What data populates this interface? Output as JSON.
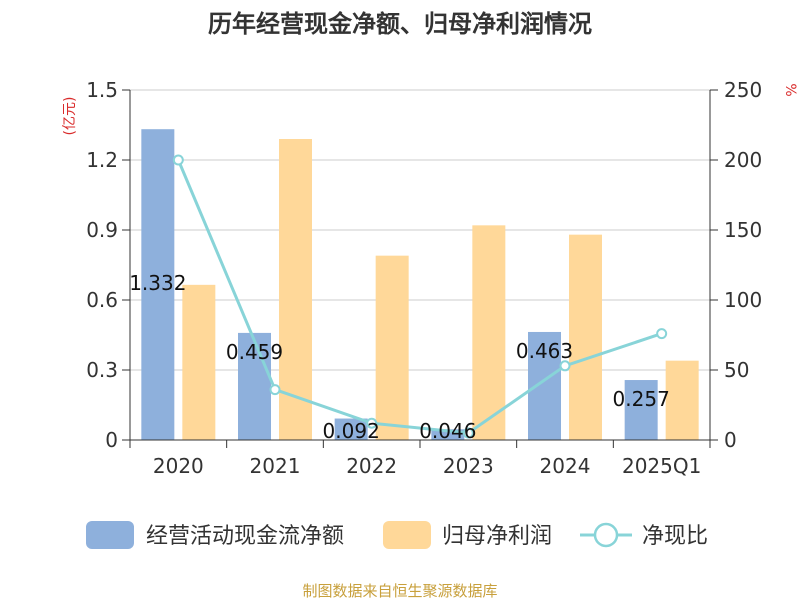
{
  "chart_data": {
    "type": "bar",
    "title": "历年经营现金净额、归母净利润情况",
    "categories": [
      "2020",
      "2021",
      "2022",
      "2023",
      "2024",
      "2025Q1"
    ],
    "y_left": {
      "unit": "(亿元)",
      "ticks": [
        "1.5",
        "1.2",
        "0.9",
        "0.6",
        "0.3",
        "0"
      ],
      "range": [
        0,
        1.5
      ]
    },
    "y_right": {
      "unit": "%",
      "ticks": [
        "250",
        "200",
        "150",
        "100",
        "50",
        "0"
      ],
      "range": [
        0,
        250
      ]
    },
    "series": [
      {
        "name": "经营活动现金流净额",
        "kind": "bar",
        "axis": "left",
        "color": "#8eb0dc",
        "values": [
          1.332,
          0.459,
          0.092,
          0.046,
          0.463,
          0.257
        ],
        "labels": [
          "1.332",
          "0.459",
          "0.092",
          "0.046",
          "0.463",
          "0.257"
        ]
      },
      {
        "name": "归母净利润",
        "kind": "bar",
        "axis": "left",
        "color": "#ffd899",
        "values": [
          0.665,
          1.29,
          0.79,
          0.92,
          0.88,
          0.34
        ]
      },
      {
        "name": "净现比",
        "kind": "line",
        "axis": "right",
        "color": "#88d4d8",
        "values": [
          200,
          36,
          12,
          5,
          53,
          76
        ]
      }
    ],
    "grid": true,
    "legend_position": "bottom"
  },
  "source": "制图数据来自恒生聚源数据库"
}
